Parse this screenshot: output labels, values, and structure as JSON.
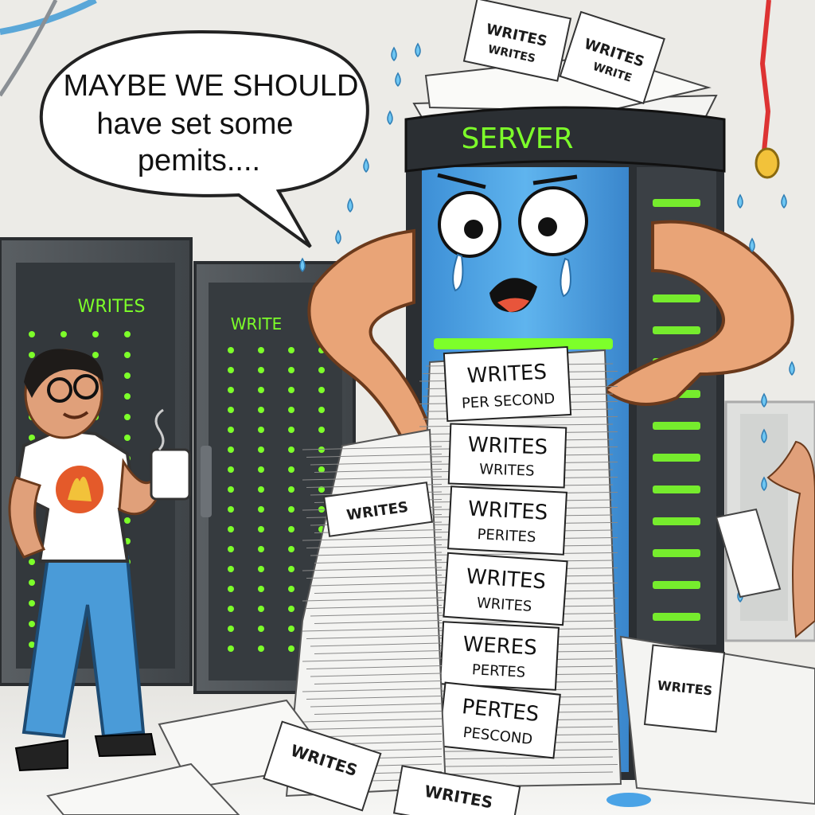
{
  "speech_bubble": {
    "lines": [
      "MAYBE WE SHOULD",
      "have set some",
      "pemits...."
    ]
  },
  "server": {
    "header_label": "SERVER"
  },
  "background_racks": {
    "left_label": "WRITES",
    "right_label": "WRITE"
  },
  "paper_signs": {
    "top_pile": [
      "WRITES",
      "WRITES",
      "WRITES",
      "WRITE"
    ],
    "stack": [
      {
        "line1": "WRITES",
        "line2": "PER SECOND"
      },
      {
        "line1": "WRITES",
        "line2": "WRITES"
      },
      {
        "line1": "WRITES",
        "line2": "PERITES"
      },
      {
        "line1": "WRITES",
        "line2": "WRITES"
      },
      {
        "line1": "WERES",
        "line2": "PERTES"
      },
      {
        "line1": "PERTES",
        "line2": "PESCOND"
      }
    ],
    "loose_left": "WRITES",
    "floor_center": "WRITES",
    "floor_bottom": "WRITES",
    "floor_right": "WRITES"
  },
  "colors": {
    "server_blue": "#4aa3e6",
    "server_dark": "#2b2f33",
    "led_green": "#7dff2a",
    "wall": "#ecebe7",
    "skin": "#e9a477",
    "jeans": "#4a9bd8"
  }
}
